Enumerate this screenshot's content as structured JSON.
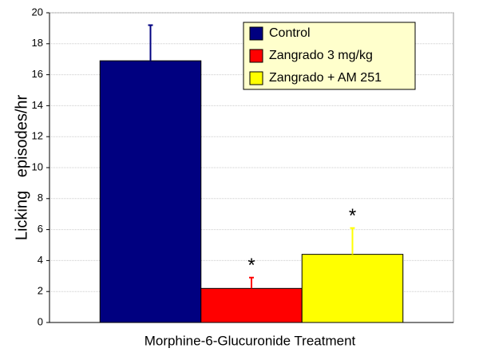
{
  "chart_data": {
    "type": "bar",
    "y_label": "Licking   episodes/hr",
    "x_label": "Morphine-6-Glucuronide Treatment",
    "categories": [
      null
    ],
    "series": [
      {
        "name": "Control",
        "color": "#000080",
        "values": [
          16.9
        ],
        "errors": [
          2.3
        ]
      },
      {
        "name": "Zangrado 3 mg/kg",
        "color": "#ff0000",
        "values": [
          2.2
        ],
        "errors": [
          0.7
        ],
        "annotation": "*"
      },
      {
        "name": "Zangrado + AM 251",
        "color": "#ffff00",
        "values": [
          4.4
        ],
        "errors": [
          1.7
        ],
        "annotation": "*"
      }
    ],
    "ylim": [
      0,
      20
    ],
    "yticks": [
      0,
      2,
      4,
      6,
      8,
      10,
      12,
      14,
      16,
      18,
      20
    ],
    "grid": true,
    "legend": "upper right"
  }
}
